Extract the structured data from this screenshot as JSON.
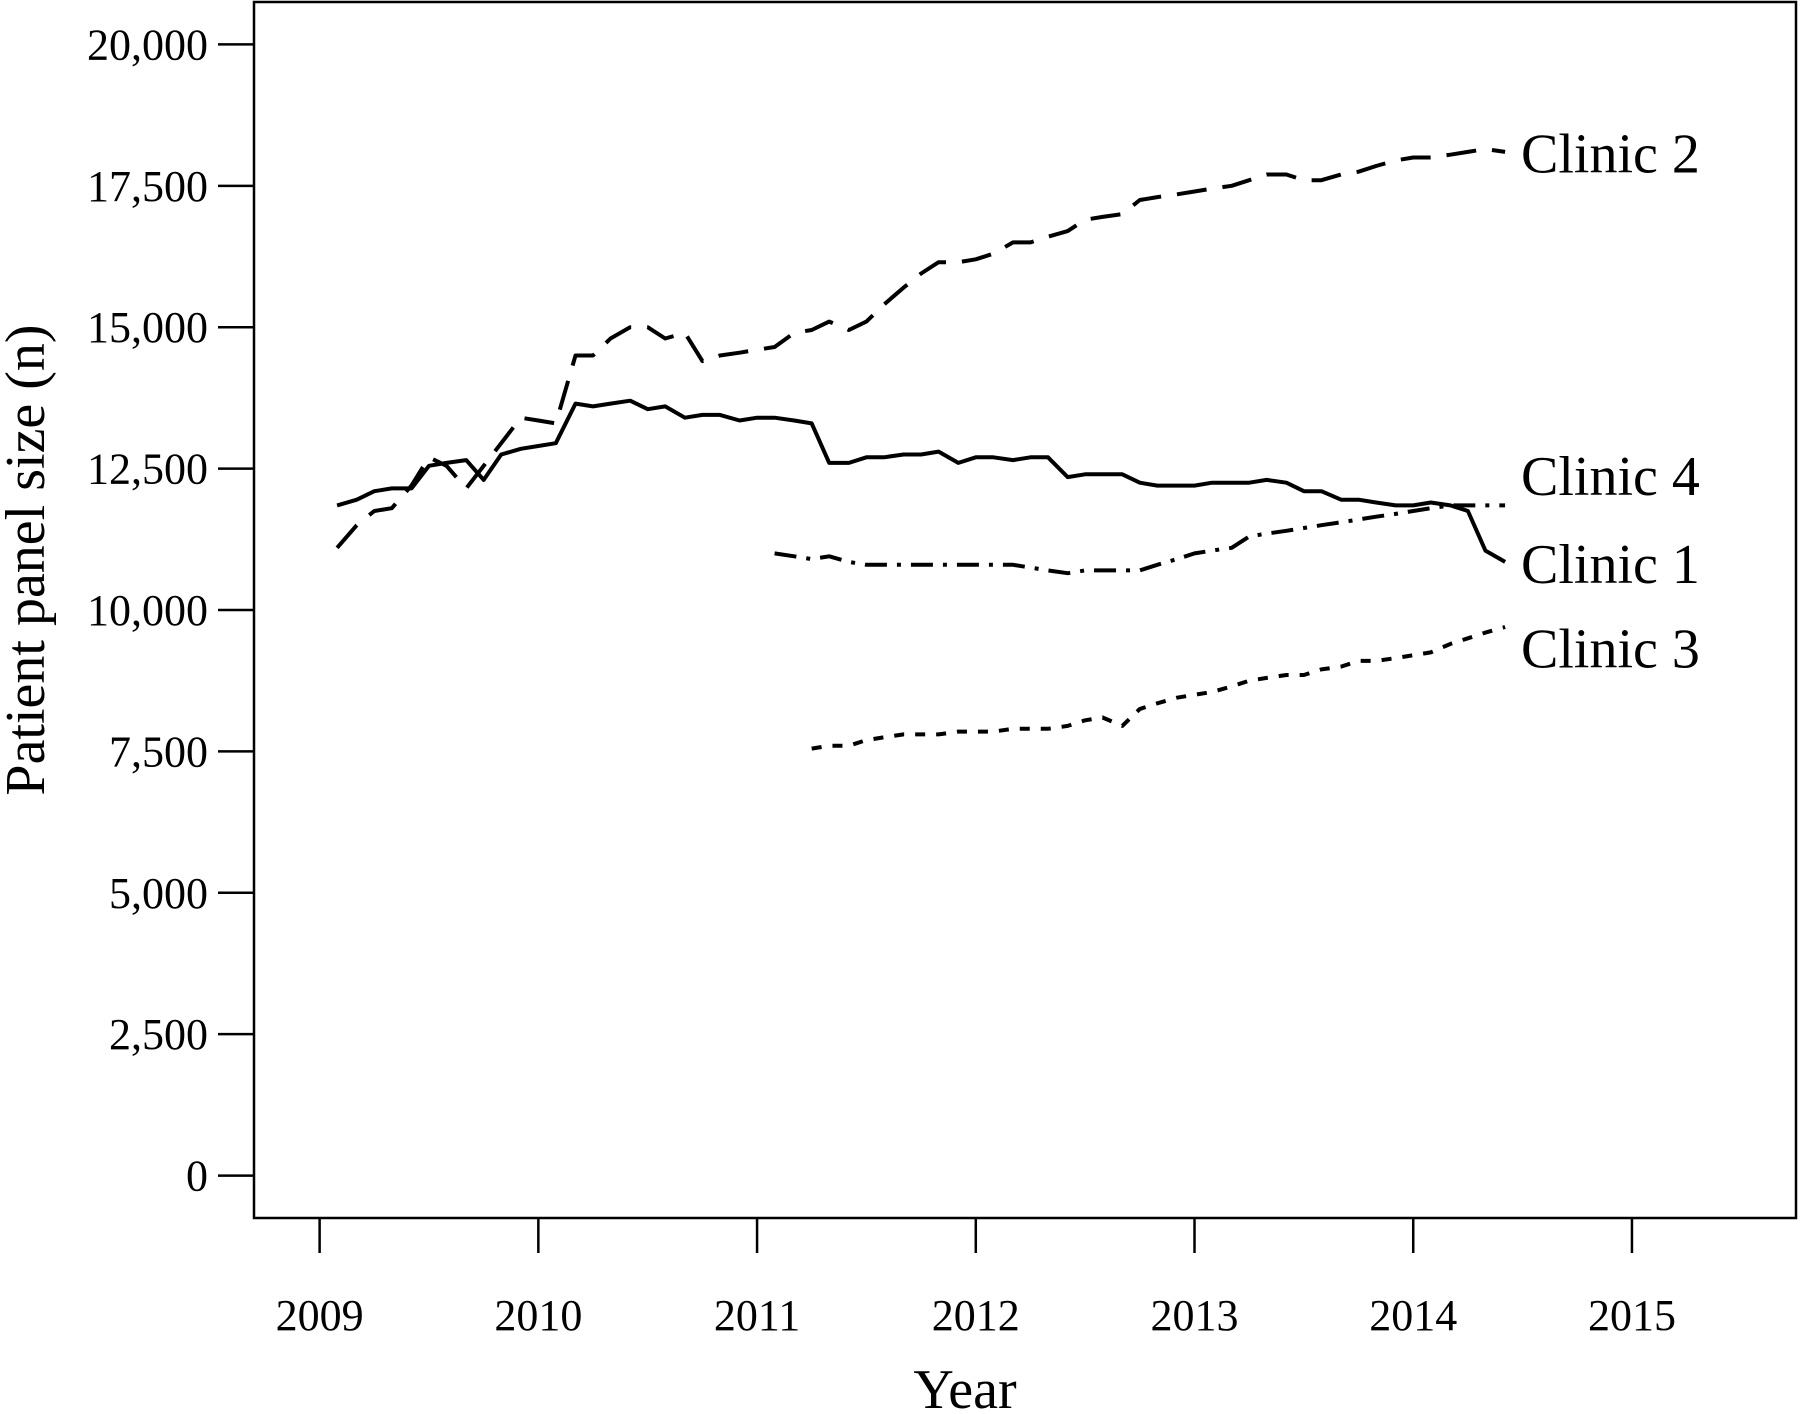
{
  "chart_data": {
    "type": "line",
    "title": "",
    "xlabel": "Year",
    "ylabel": "Patient panel size (n)",
    "xlim": [
      2008.7,
      2015.75
    ],
    "ylim": [
      -750,
      20750
    ],
    "x_ticks": [
      2009,
      2010,
      2011,
      2012,
      2013,
      2014,
      2015
    ],
    "x_tick_labels": [
      "2009",
      "2010",
      "2011",
      "2012",
      "2013",
      "2014",
      "2015"
    ],
    "y_ticks": [
      0,
      2500,
      5000,
      7500,
      10000,
      12500,
      15000,
      17500,
      20000
    ],
    "y_tick_labels": [
      "0",
      "2,500",
      "5,000",
      "7,500",
      "10,000",
      "12,500",
      "15,000",
      "17,500",
      "20,000"
    ],
    "grid": false,
    "legend": "direct labels at right end of lines",
    "series": [
      {
        "name": "Clinic 1",
        "style": "solid",
        "points": [
          [
            2009.08,
            11850
          ],
          [
            2009.17,
            11950
          ],
          [
            2009.25,
            12100
          ],
          [
            2009.33,
            12150
          ],
          [
            2009.42,
            12150
          ],
          [
            2009.5,
            12550
          ],
          [
            2009.58,
            12600
          ],
          [
            2009.67,
            12650
          ],
          [
            2009.75,
            12300
          ],
          [
            2009.83,
            12750
          ],
          [
            2009.92,
            12850
          ],
          [
            2010.0,
            12900
          ],
          [
            2010.08,
            12950
          ],
          [
            2010.17,
            13650
          ],
          [
            2010.25,
            13600
          ],
          [
            2010.33,
            13650
          ],
          [
            2010.42,
            13700
          ],
          [
            2010.5,
            13550
          ],
          [
            2010.58,
            13600
          ],
          [
            2010.67,
            13400
          ],
          [
            2010.75,
            13450
          ],
          [
            2010.83,
            13450
          ],
          [
            2010.92,
            13350
          ],
          [
            2011.0,
            13400
          ],
          [
            2011.08,
            13400
          ],
          [
            2011.17,
            13350
          ],
          [
            2011.25,
            13300
          ],
          [
            2011.33,
            12600
          ],
          [
            2011.42,
            12600
          ],
          [
            2011.5,
            12700
          ],
          [
            2011.58,
            12700
          ],
          [
            2011.67,
            12750
          ],
          [
            2011.75,
            12750
          ],
          [
            2011.83,
            12800
          ],
          [
            2011.92,
            12600
          ],
          [
            2012.0,
            12700
          ],
          [
            2012.08,
            12700
          ],
          [
            2012.17,
            12650
          ],
          [
            2012.25,
            12700
          ],
          [
            2012.33,
            12700
          ],
          [
            2012.42,
            12350
          ],
          [
            2012.5,
            12400
          ],
          [
            2012.58,
            12400
          ],
          [
            2012.67,
            12400
          ],
          [
            2012.75,
            12250
          ],
          [
            2012.83,
            12200
          ],
          [
            2012.92,
            12200
          ],
          [
            2013.0,
            12200
          ],
          [
            2013.08,
            12250
          ],
          [
            2013.17,
            12250
          ],
          [
            2013.25,
            12250
          ],
          [
            2013.33,
            12300
          ],
          [
            2013.42,
            12250
          ],
          [
            2013.5,
            12100
          ],
          [
            2013.58,
            12100
          ],
          [
            2013.67,
            11950
          ],
          [
            2013.75,
            11950
          ],
          [
            2013.83,
            11900
          ],
          [
            2013.92,
            11850
          ],
          [
            2014.0,
            11850
          ],
          [
            2014.08,
            11900
          ],
          [
            2014.17,
            11850
          ],
          [
            2014.25,
            11750
          ],
          [
            2014.33,
            11050
          ],
          [
            2014.42,
            10850
          ]
        ]
      },
      {
        "name": "Clinic 2",
        "style": "long-dash",
        "points": [
          [
            2009.08,
            11100
          ],
          [
            2009.17,
            11500
          ],
          [
            2009.25,
            11750
          ],
          [
            2009.33,
            11800
          ],
          [
            2009.42,
            12200
          ],
          [
            2009.5,
            12700
          ],
          [
            2009.58,
            12550
          ],
          [
            2009.67,
            12150
          ],
          [
            2009.75,
            12550
          ],
          [
            2009.83,
            12950
          ],
          [
            2009.92,
            13400
          ],
          [
            2010.0,
            13350
          ],
          [
            2010.08,
            13300
          ],
          [
            2010.17,
            14500
          ],
          [
            2010.25,
            14500
          ],
          [
            2010.33,
            14800
          ],
          [
            2010.42,
            15000
          ],
          [
            2010.5,
            15000
          ],
          [
            2010.58,
            14800
          ],
          [
            2010.67,
            14900
          ],
          [
            2010.75,
            14400
          ],
          [
            2010.83,
            14500
          ],
          [
            2010.92,
            14550
          ],
          [
            2011.0,
            14600
          ],
          [
            2011.08,
            14650
          ],
          [
            2011.17,
            14900
          ],
          [
            2011.25,
            14950
          ],
          [
            2011.33,
            15100
          ],
          [
            2011.42,
            14950
          ],
          [
            2011.5,
            15100
          ],
          [
            2011.58,
            15400
          ],
          [
            2011.67,
            15700
          ],
          [
            2011.75,
            15950
          ],
          [
            2011.83,
            16150
          ],
          [
            2011.92,
            16150
          ],
          [
            2012.0,
            16200
          ],
          [
            2012.08,
            16300
          ],
          [
            2012.17,
            16500
          ],
          [
            2012.25,
            16500
          ],
          [
            2012.33,
            16600
          ],
          [
            2012.42,
            16700
          ],
          [
            2012.5,
            16900
          ],
          [
            2012.58,
            16950
          ],
          [
            2012.67,
            17000
          ],
          [
            2012.75,
            17250
          ],
          [
            2012.83,
            17300
          ],
          [
            2012.92,
            17350
          ],
          [
            2013.0,
            17400
          ],
          [
            2013.08,
            17450
          ],
          [
            2013.17,
            17500
          ],
          [
            2013.25,
            17600
          ],
          [
            2013.33,
            17700
          ],
          [
            2013.42,
            17700
          ],
          [
            2013.5,
            17600
          ],
          [
            2013.58,
            17600
          ],
          [
            2013.67,
            17700
          ],
          [
            2013.75,
            17750
          ],
          [
            2013.83,
            17850
          ],
          [
            2013.92,
            17950
          ],
          [
            2014.0,
            18000
          ],
          [
            2014.08,
            18000
          ],
          [
            2014.17,
            18050
          ],
          [
            2014.25,
            18100
          ],
          [
            2014.33,
            18150
          ],
          [
            2014.42,
            18100
          ]
        ]
      },
      {
        "name": "Clinic 3",
        "style": "short-dash",
        "points": [
          [
            2011.25,
            7550
          ],
          [
            2011.33,
            7600
          ],
          [
            2011.42,
            7600
          ],
          [
            2011.5,
            7700
          ],
          [
            2011.58,
            7750
          ],
          [
            2011.67,
            7800
          ],
          [
            2011.75,
            7800
          ],
          [
            2011.83,
            7800
          ],
          [
            2011.92,
            7850
          ],
          [
            2012.0,
            7850
          ],
          [
            2012.08,
            7850
          ],
          [
            2012.17,
            7900
          ],
          [
            2012.25,
            7900
          ],
          [
            2012.33,
            7900
          ],
          [
            2012.42,
            7950
          ],
          [
            2012.5,
            8050
          ],
          [
            2012.58,
            8100
          ],
          [
            2012.67,
            7950
          ],
          [
            2012.75,
            8250
          ],
          [
            2012.83,
            8350
          ],
          [
            2012.92,
            8450
          ],
          [
            2013.0,
            8500
          ],
          [
            2013.08,
            8550
          ],
          [
            2013.17,
            8650
          ],
          [
            2013.25,
            8750
          ],
          [
            2013.33,
            8800
          ],
          [
            2013.42,
            8850
          ],
          [
            2013.5,
            8850
          ],
          [
            2013.58,
            8950
          ],
          [
            2013.67,
            9000
          ],
          [
            2013.75,
            9100
          ],
          [
            2013.83,
            9100
          ],
          [
            2013.92,
            9150
          ],
          [
            2014.0,
            9200
          ],
          [
            2014.08,
            9250
          ],
          [
            2014.17,
            9400
          ],
          [
            2014.25,
            9500
          ],
          [
            2014.33,
            9600
          ],
          [
            2014.42,
            9700
          ]
        ]
      },
      {
        "name": "Clinic 4",
        "style": "dash-dot",
        "points": [
          [
            2011.08,
            11000
          ],
          [
            2011.17,
            10950
          ],
          [
            2011.25,
            10900
          ],
          [
            2011.33,
            10950
          ],
          [
            2011.42,
            10850
          ],
          [
            2011.5,
            10800
          ],
          [
            2011.58,
            10800
          ],
          [
            2011.67,
            10800
          ],
          [
            2011.75,
            10800
          ],
          [
            2011.83,
            10800
          ],
          [
            2011.92,
            10800
          ],
          [
            2012.0,
            10800
          ],
          [
            2012.08,
            10800
          ],
          [
            2012.17,
            10800
          ],
          [
            2012.25,
            10750
          ],
          [
            2012.33,
            10700
          ],
          [
            2012.42,
            10650
          ],
          [
            2012.5,
            10700
          ],
          [
            2012.58,
            10700
          ],
          [
            2012.67,
            10700
          ],
          [
            2012.75,
            10700
          ],
          [
            2012.83,
            10800
          ],
          [
            2012.92,
            10900
          ],
          [
            2013.0,
            11000
          ],
          [
            2013.08,
            11050
          ],
          [
            2013.17,
            11100
          ],
          [
            2013.25,
            11300
          ],
          [
            2013.33,
            11350
          ],
          [
            2013.42,
            11400
          ],
          [
            2013.5,
            11450
          ],
          [
            2013.58,
            11500
          ],
          [
            2013.67,
            11550
          ],
          [
            2013.75,
            11600
          ],
          [
            2013.83,
            11650
          ],
          [
            2013.92,
            11700
          ],
          [
            2014.0,
            11750
          ],
          [
            2014.08,
            11800
          ],
          [
            2014.17,
            11850
          ],
          [
            2014.25,
            11850
          ],
          [
            2014.33,
            11850
          ],
          [
            2014.42,
            11850
          ]
        ]
      }
    ],
    "series_labels": [
      {
        "text": "Clinic 2",
        "anchor_value": 18050
      },
      {
        "text": "Clinic 4",
        "anchor_value": 12350
      },
      {
        "text": "Clinic 1",
        "anchor_value": 10800
      },
      {
        "text": "Clinic 3",
        "anchor_value": 9300
      }
    ],
    "colors": {
      "line": "#000000",
      "background": "#ffffff"
    }
  }
}
